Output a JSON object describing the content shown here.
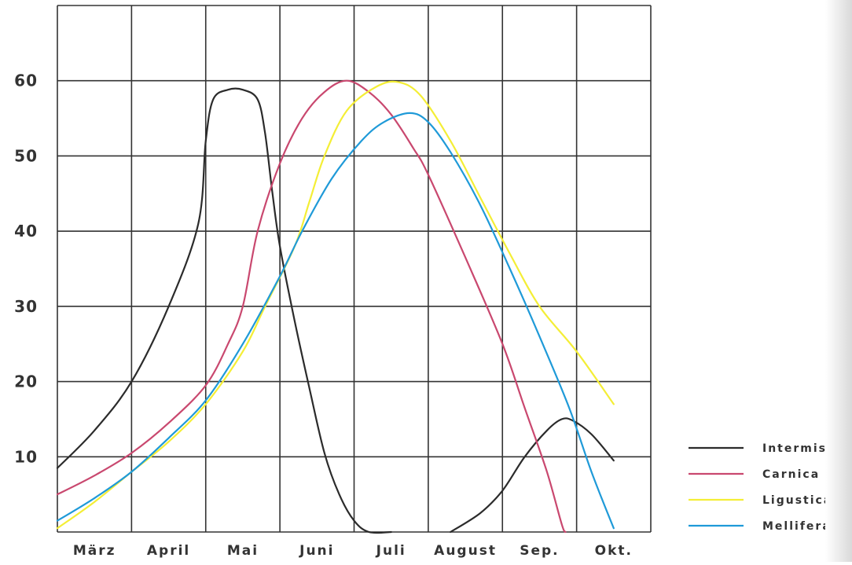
{
  "chart_data": {
    "type": "line",
    "title": "",
    "xlabel": "",
    "ylabel": "",
    "categories": [
      "März",
      "April",
      "Mai",
      "Juni",
      "Juli",
      "August",
      "Sep.",
      "Okt."
    ],
    "x_range": [
      0,
      8
    ],
    "ylim": [
      0,
      70
    ],
    "y_ticks": [
      10,
      20,
      30,
      40,
      50,
      60
    ],
    "grid": true,
    "legend_position": "bottom-right",
    "series": [
      {
        "name": "Intermissa",
        "color": "#2b2b2b",
        "points": [
          [
            0,
            8.5
          ],
          [
            0.5,
            13.5
          ],
          [
            1,
            20
          ],
          [
            1.5,
            30
          ],
          [
            1.9,
            41
          ],
          [
            2.0,
            52
          ],
          [
            2.1,
            57.5
          ],
          [
            2.3,
            58.8
          ],
          [
            2.5,
            58.8
          ],
          [
            2.7,
            57.5
          ],
          [
            2.8,
            53
          ],
          [
            2.9,
            45
          ],
          [
            3.0,
            38
          ],
          [
            3.2,
            28
          ],
          [
            3.4,
            19
          ],
          [
            3.6,
            10.5
          ],
          [
            3.8,
            5
          ],
          [
            4.0,
            1.5
          ],
          [
            4.2,
            0
          ],
          [
            4.5,
            0
          ],
          null,
          [
            5.3,
            0
          ],
          [
            5.7,
            2.5
          ],
          [
            6.0,
            5.5
          ],
          [
            6.3,
            10
          ],
          [
            6.6,
            13.5
          ],
          [
            6.8,
            15
          ],
          [
            6.95,
            14.8
          ],
          [
            7.2,
            13
          ],
          [
            7.5,
            9.5
          ]
        ]
      },
      {
        "name": "Carnica",
        "color": "#c9486f",
        "points": [
          [
            0,
            5
          ],
          [
            0.5,
            7.5
          ],
          [
            1,
            10.5
          ],
          [
            1.5,
            14.5
          ],
          [
            2,
            19.5
          ],
          [
            2.3,
            25
          ],
          [
            2.5,
            30
          ],
          [
            2.7,
            40
          ],
          [
            3.0,
            49
          ],
          [
            3.3,
            55
          ],
          [
            3.6,
            58.5
          ],
          [
            3.9,
            60
          ],
          [
            4.2,
            58.5
          ],
          [
            4.5,
            55.5
          ],
          [
            4.8,
            51
          ],
          [
            5.0,
            47.5
          ],
          [
            5.5,
            36.5
          ],
          [
            6.0,
            25
          ],
          [
            6.3,
            16.5
          ],
          [
            6.6,
            8
          ],
          [
            6.8,
            1
          ],
          [
            6.85,
            0
          ]
        ]
      },
      {
        "name": "Ligustica",
        "color": "#f4ee36",
        "points": [
          [
            0,
            0.5
          ],
          [
            0.5,
            4
          ],
          [
            1,
            8
          ],
          [
            1.5,
            12
          ],
          [
            2,
            17
          ],
          [
            2.5,
            24
          ],
          [
            2.8,
            30
          ],
          [
            3.2,
            38
          ],
          [
            3.4,
            44
          ],
          [
            3.6,
            50
          ],
          [
            3.9,
            56
          ],
          [
            4.3,
            59.2
          ],
          [
            4.6,
            59.8
          ],
          [
            4.9,
            58
          ],
          [
            5.3,
            52
          ],
          [
            5.7,
            44.5
          ],
          [
            6.1,
            37
          ],
          [
            6.5,
            30
          ],
          [
            7.0,
            24
          ],
          [
            7.5,
            17
          ]
        ]
      },
      {
        "name": "Mellifera",
        "color": "#1f9ad8",
        "points": [
          [
            0,
            1.5
          ],
          [
            0.5,
            4.5
          ],
          [
            1,
            8
          ],
          [
            1.5,
            12.5
          ],
          [
            2,
            17.5
          ],
          [
            2.5,
            25
          ],
          [
            3.0,
            34
          ],
          [
            3.3,
            40
          ],
          [
            3.7,
            47
          ],
          [
            4.1,
            52
          ],
          [
            4.4,
            54.5
          ],
          [
            4.75,
            55.7
          ],
          [
            5.0,
            54.5
          ],
          [
            5.3,
            50.5
          ],
          [
            5.7,
            43.5
          ],
          [
            6.1,
            35
          ],
          [
            6.5,
            26
          ],
          [
            6.9,
            16.5
          ],
          [
            7.2,
            8
          ],
          [
            7.5,
            0.5
          ]
        ]
      }
    ]
  }
}
